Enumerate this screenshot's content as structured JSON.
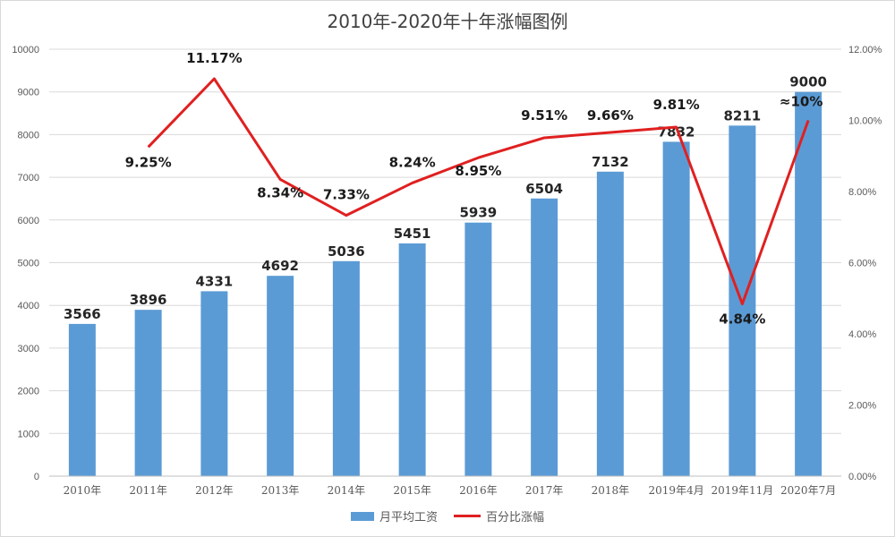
{
  "chart_data": {
    "type": "bar+line",
    "title": "2010年-2020年十年涨幅图例",
    "categories": [
      "2010年",
      "2011年",
      "2012年",
      "2013年",
      "2014年",
      "2015年",
      "2016年",
      "2017年",
      "2018年",
      "2019年4月",
      "2019年11月",
      "2020年7月"
    ],
    "series": [
      {
        "name": "月平均工资",
        "type": "bar",
        "axis": "left",
        "values": [
          3566,
          3896,
          4331,
          4692,
          5036,
          5451,
          5939,
          6504,
          7132,
          7832,
          8211,
          9000
        ],
        "labels": [
          "3566",
          "3896",
          "4331",
          "4692",
          "5036",
          "5451",
          "5939",
          "6504",
          "7132",
          "7832",
          "8211",
          "9000"
        ],
        "color": "#5b9bd5"
      },
      {
        "name": "百分比涨幅",
        "type": "line",
        "axis": "right",
        "values": [
          null,
          9.25,
          11.17,
          8.34,
          7.33,
          8.24,
          8.95,
          9.51,
          9.66,
          9.81,
          4.84,
          10
        ],
        "labels": [
          "",
          "9.25%",
          "11.17%",
          "8.34%",
          "7.33%",
          "8.24%",
          "8.95%",
          "9.51%",
          "9.66%",
          "9.81%",
          "4.84%",
          "≈10%"
        ],
        "color": "#e02020"
      }
    ],
    "y_left": {
      "min": 0,
      "max": 10000,
      "ticks": [
        "0",
        "1000",
        "2000",
        "3000",
        "4000",
        "5000",
        "6000",
        "7000",
        "8000",
        "9000",
        "10000"
      ]
    },
    "y_right": {
      "min": 0,
      "max": 12,
      "ticks": [
        "0.00%",
        "2.00%",
        "4.00%",
        "6.00%",
        "8.00%",
        "10.00%",
        "12.00%"
      ]
    },
    "grid": true,
    "legend_position": "bottom"
  }
}
